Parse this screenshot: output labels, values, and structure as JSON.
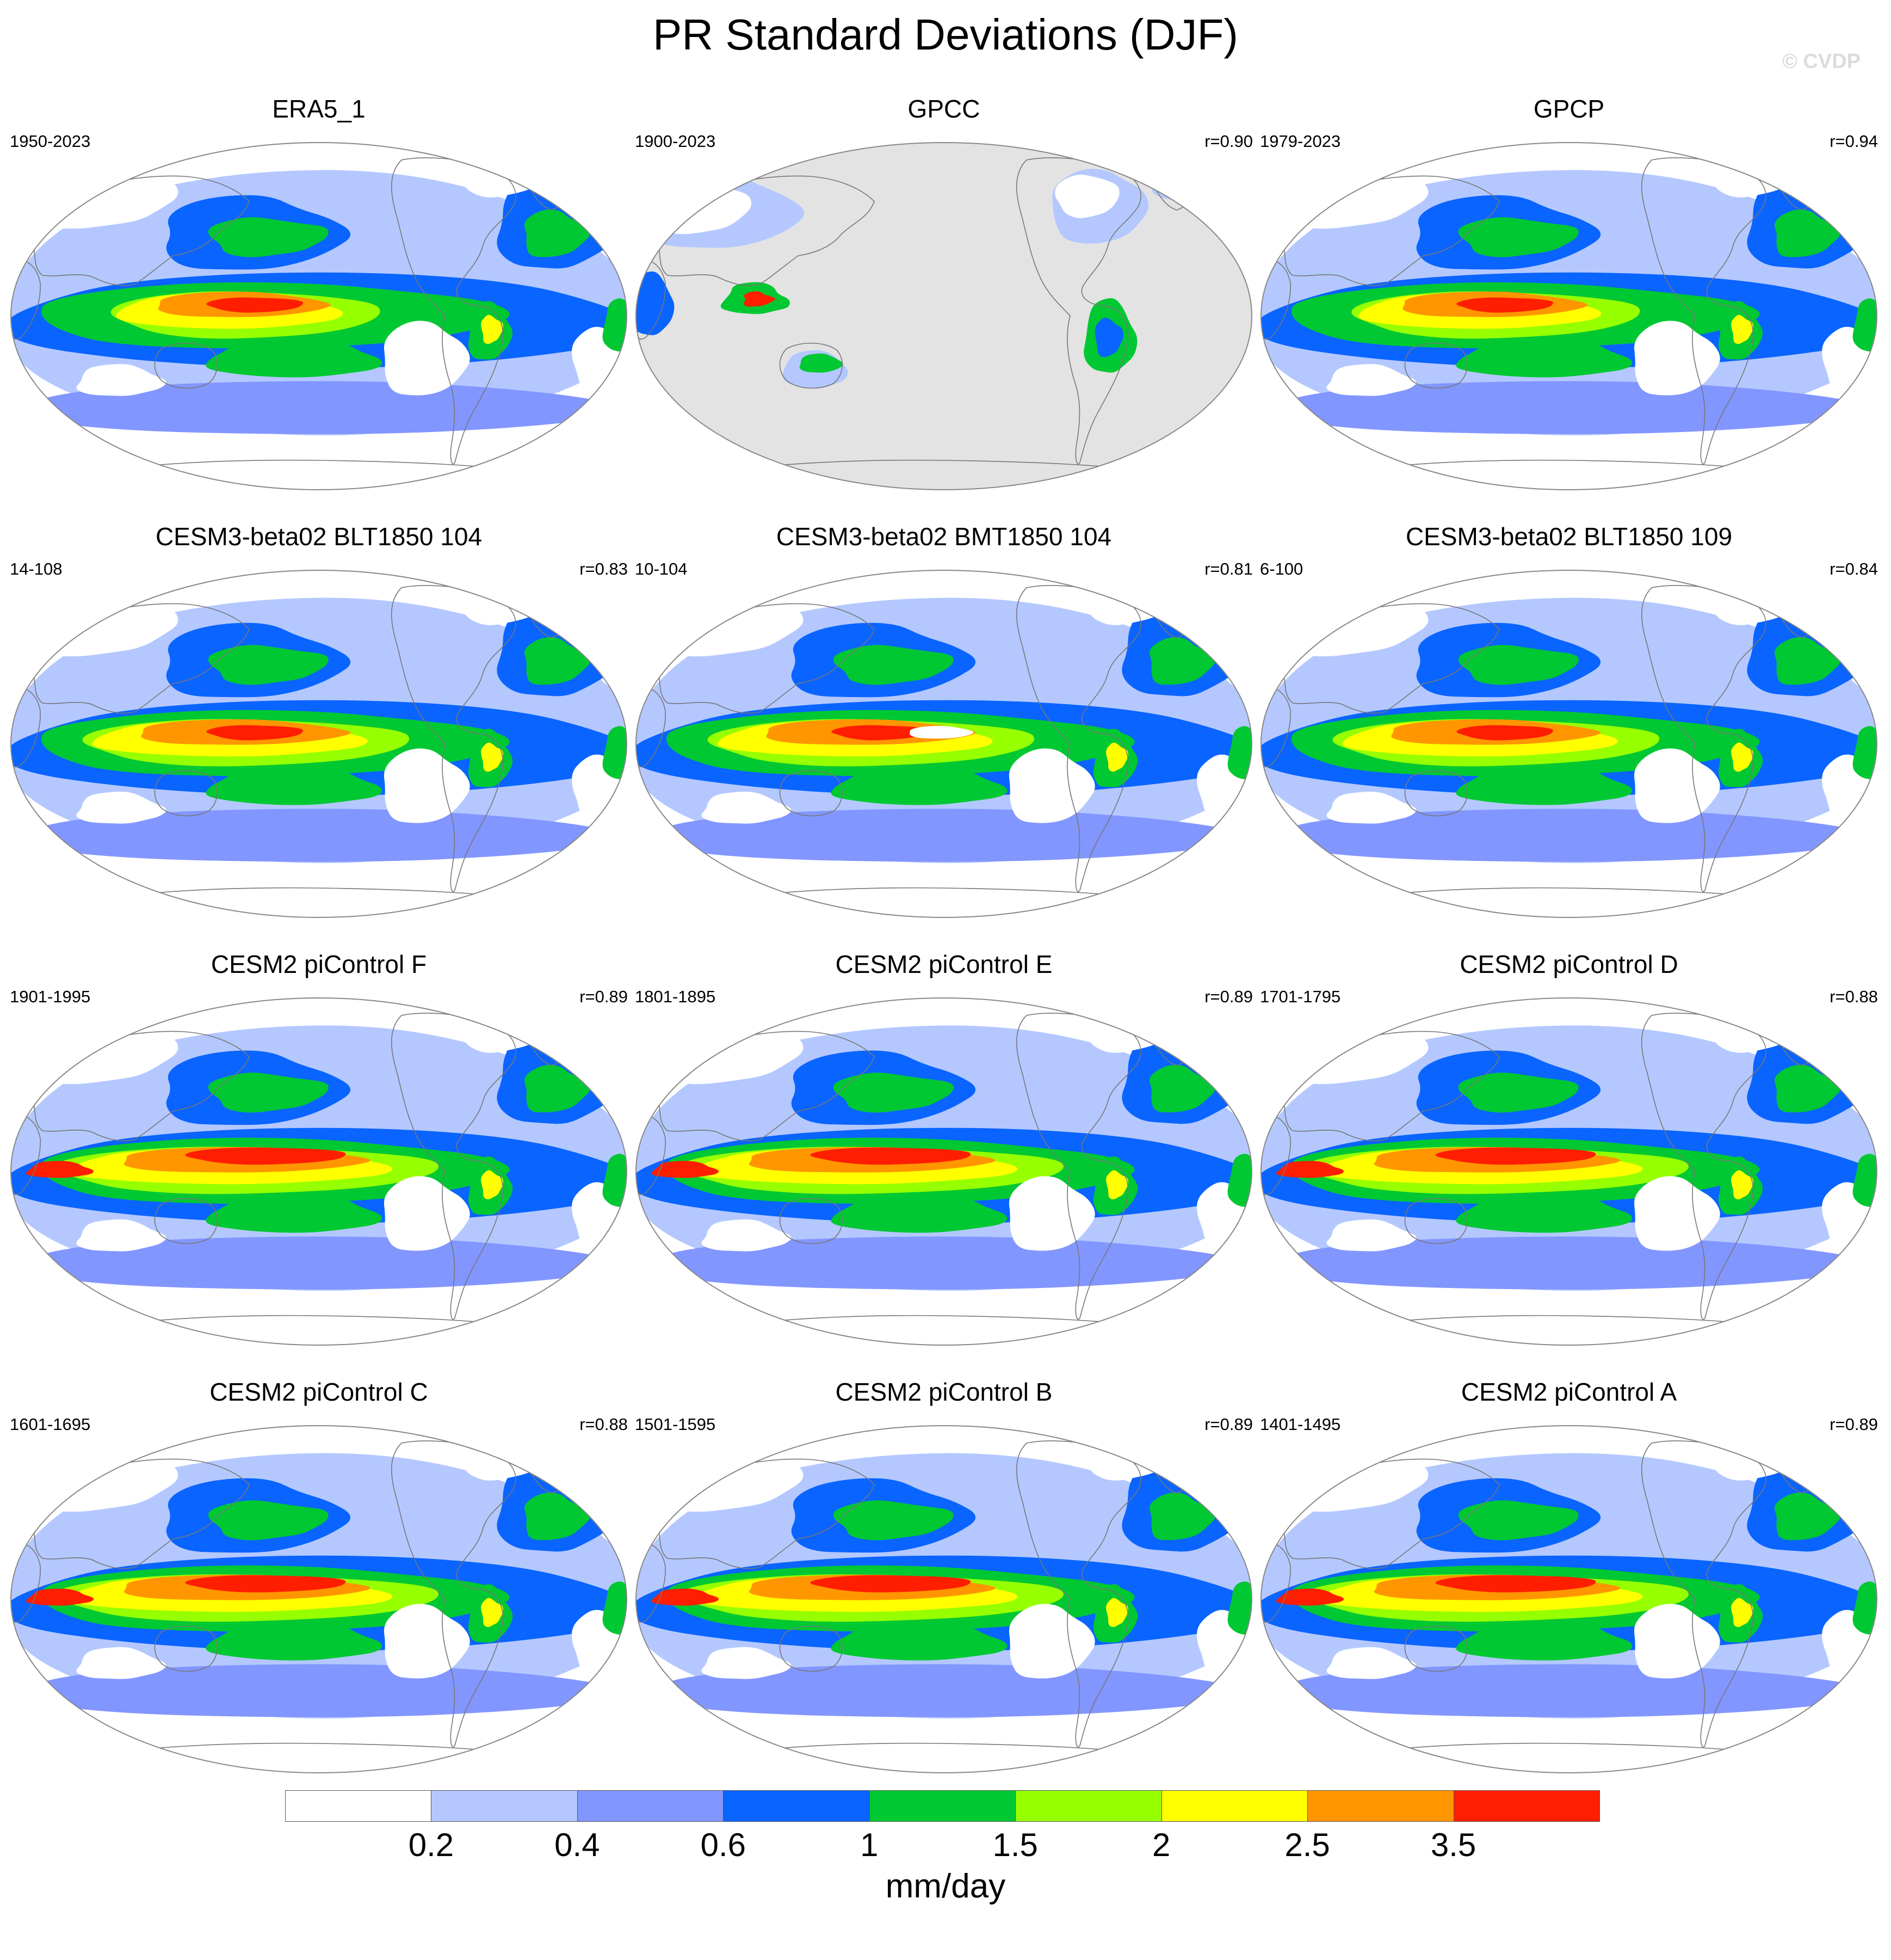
{
  "title": "PR Standard Deviations (DJF)",
  "watermark": "© CVDP",
  "panels": [
    {
      "title": "ERA5_1",
      "period": "1950-2023",
      "corr": "",
      "style": "era5",
      "masked": false
    },
    {
      "title": "GPCC",
      "period": "1900-2023",
      "corr": "r=0.90",
      "style": "gpcc",
      "masked": true
    },
    {
      "title": "GPCP",
      "period": "1979-2023",
      "corr": "r=0.94",
      "style": "gpcp",
      "masked": false
    },
    {
      "title": "CESM3-beta02 BLT1850 104",
      "period": "14-108",
      "corr": "r=0.83",
      "style": "cesm3",
      "masked": false
    },
    {
      "title": "CESM3-beta02 BMT1850 104",
      "period": "10-104",
      "corr": "r=0.81",
      "style": "cesm3b",
      "masked": false
    },
    {
      "title": "CESM3-beta02 BLT1850 109",
      "period": "6-100",
      "corr": "r=0.84",
      "style": "cesm3",
      "masked": false
    },
    {
      "title": "CESM2 piControl F",
      "period": "1901-1995",
      "corr": "r=0.89",
      "style": "cesm2",
      "masked": false
    },
    {
      "title": "CESM2 piControl E",
      "period": "1801-1895",
      "corr": "r=0.89",
      "style": "cesm2",
      "masked": false
    },
    {
      "title": "CESM2 piControl D",
      "period": "1701-1795",
      "corr": "r=0.88",
      "style": "cesm2",
      "masked": false
    },
    {
      "title": "CESM2 piControl C",
      "period": "1601-1695",
      "corr": "r=0.88",
      "style": "cesm2",
      "masked": false
    },
    {
      "title": "CESM2 piControl B",
      "period": "1501-1595",
      "corr": "r=0.89",
      "style": "cesm2",
      "masked": false
    },
    {
      "title": "CESM2 piControl A",
      "period": "1401-1495",
      "corr": "r=0.89",
      "style": "cesm2",
      "masked": false
    }
  ],
  "colorbar": {
    "colors": [
      "#ffffff",
      "#b4c8ff",
      "#8296ff",
      "#0a64ff",
      "#00c832",
      "#96ff00",
      "#ffff00",
      "#ff9600",
      "#ff1e00"
    ],
    "tick_labels": [
      "0.2",
      "0.4",
      "0.6",
      "1",
      "1.5",
      "2",
      "2.5",
      "3.5"
    ],
    "unit": "mm/day"
  },
  "map_colors": {
    "missing": "#e3e3e3",
    "coastline": "#777777",
    "outline": "#888888"
  }
}
